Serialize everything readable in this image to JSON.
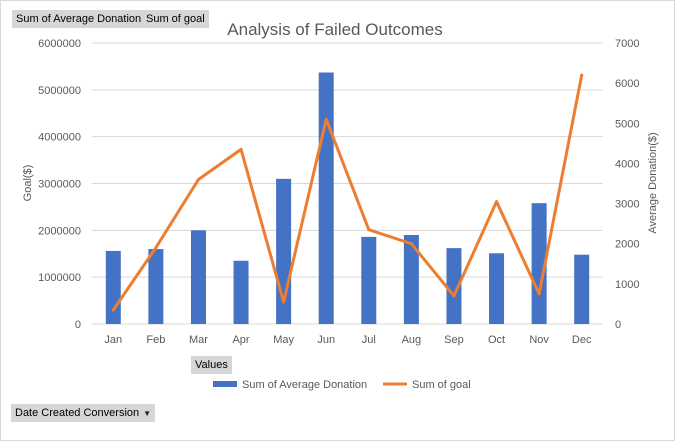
{
  "field_buttons": {
    "value_field_1": "Sum of Average Donation",
    "value_field_2": "Sum of goal",
    "values_button": "Values",
    "axis_field": "Date Created Conversion"
  },
  "colors": {
    "bar": "#4472c4",
    "line": "#ed7d31",
    "grid": "#d9d9d9",
    "text": "#595959",
    "button_bg": "#d6d6d6"
  },
  "chart_data": {
    "type": "bar",
    "title": "Analysis of Failed Outcomes",
    "xlabel": "",
    "ylabel": "Goal($)",
    "y2label": "Average Donation($)",
    "categories": [
      "Jan",
      "Feb",
      "Mar",
      "Apr",
      "May",
      "Jun",
      "Jul",
      "Aug",
      "Sep",
      "Oct",
      "Nov",
      "Dec"
    ],
    "ylim": [
      0,
      6000000
    ],
    "yticks": [
      "0",
      "1000000",
      "2000000",
      "3000000",
      "4000000",
      "5000000",
      "6000000"
    ],
    "y2lim": [
      0,
      7000
    ],
    "y2ticks": [
      "0",
      "1000",
      "2000",
      "3000",
      "4000",
      "5000",
      "6000",
      "7000"
    ],
    "grid": true,
    "legend_position": "bottom",
    "series": [
      {
        "name": "Sum of Average Donation",
        "type": "bar",
        "axis": "left",
        "values": [
          1560000,
          1600000,
          2000000,
          1350000,
          3100000,
          5370000,
          1860000,
          1900000,
          1620000,
          1510000,
          2580000,
          1480000
        ]
      },
      {
        "name": "Sum of goal",
        "type": "line",
        "axis": "right",
        "values": [
          350,
          1900,
          3600,
          4350,
          550,
          5100,
          2350,
          2000,
          700,
          3050,
          750,
          6200
        ]
      }
    ]
  }
}
